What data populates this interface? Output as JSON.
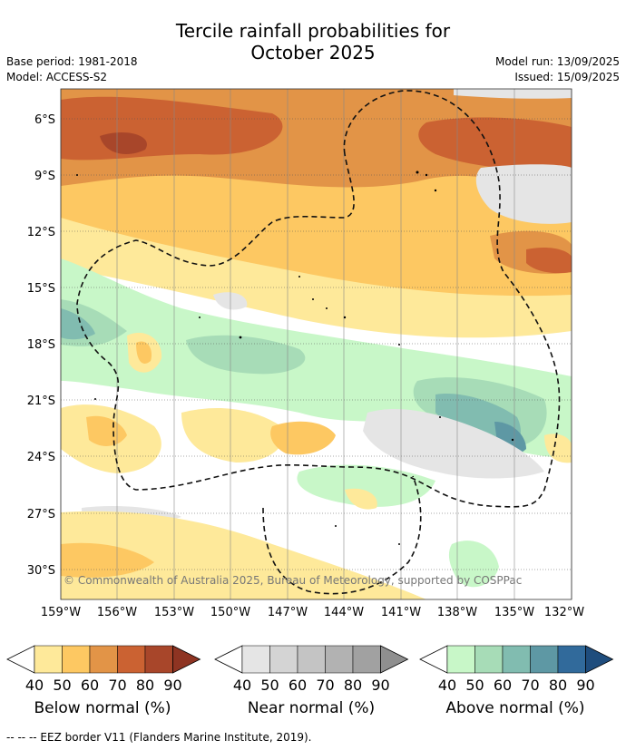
{
  "title_line1": "Tercile rainfall probabilities for",
  "title_line2": "October 2025",
  "meta": {
    "base_period": "Base period: 1981-2018",
    "model": "Model: ACCESS-S2",
    "model_run": "Model run: 13/09/2025",
    "issued": "Issued: 15/09/2025"
  },
  "map": {
    "lat_labels": [
      "6°S",
      "9°S",
      "12°S",
      "15°S",
      "18°S",
      "21°S",
      "24°S",
      "27°S",
      "30°S"
    ],
    "lon_labels": [
      "159°W",
      "156°W",
      "153°W",
      "150°W",
      "147°W",
      "144°W",
      "141°W",
      "138°W",
      "135°W",
      "132°W"
    ],
    "copyright": "© Commonwealth of Australia 2025, Bureau of Meteorology, supported by COSPPac"
  },
  "colorbars": [
    {
      "name": "below",
      "label": "Below normal (%)",
      "ticks": [
        "40",
        "50",
        "60",
        "70",
        "80",
        "90"
      ],
      "colors": [
        "#ffffff",
        "#fee99a",
        "#fdc862",
        "#e29447",
        "#cb6232",
        "#a8462a",
        "#8e3422"
      ]
    },
    {
      "name": "near",
      "label": "Near normal (%)",
      "ticks": [
        "40",
        "50",
        "60",
        "70",
        "80",
        "90"
      ],
      "colors": [
        "#ffffff",
        "#e5e5e5",
        "#d4d4d4",
        "#c4c4c4",
        "#b2b2b2",
        "#a1a1a1",
        "#8f8f8f"
      ]
    },
    {
      "name": "above",
      "label": "Above normal (%)",
      "ticks": [
        "40",
        "50",
        "60",
        "70",
        "80",
        "90"
      ],
      "colors": [
        "#ffffff",
        "#c8f7c8",
        "#a7dcb7",
        "#81bcb0",
        "#5e98a4",
        "#316a9b",
        "#1f4d7d"
      ]
    }
  ],
  "footer": "--  --  -- EEZ border V11 (Flanders Marine Institute, 2019)."
}
